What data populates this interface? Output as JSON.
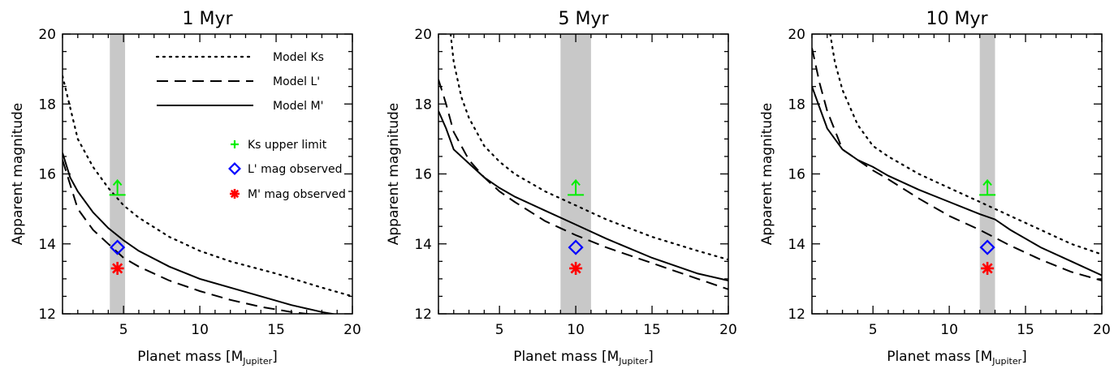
{
  "chart_data": [
    {
      "type": "line",
      "title": "1 Myr",
      "xlabel": "Planet mass [M",
      "xlabel_sub": "Jupiter",
      "xlabel_end": "]",
      "ylabel": "Apparent magnitude",
      "xlim": [
        1,
        20
      ],
      "ylim": [
        12,
        20
      ],
      "xticks": [
        5,
        10,
        15,
        20
      ],
      "yticks": [
        12,
        14,
        16,
        18,
        20
      ],
      "band": [
        4.1,
        5.1
      ],
      "series": [
        {
          "name": "Model Ks",
          "style": "dotted",
          "x": [
            1,
            2,
            3,
            4,
            5,
            6,
            8,
            10,
            12,
            15,
            18,
            20
          ],
          "y": [
            18.8,
            17.0,
            16.2,
            15.6,
            15.1,
            14.75,
            14.2,
            13.8,
            13.5,
            13.15,
            12.75,
            12.5
          ]
        },
        {
          "name": "Model L'",
          "style": "dashed",
          "x": [
            1,
            2,
            3,
            4,
            5,
            6,
            8,
            10,
            12,
            14,
            16,
            18
          ],
          "y": [
            16.4,
            15.0,
            14.4,
            14.0,
            13.6,
            13.35,
            12.95,
            12.65,
            12.4,
            12.2,
            12.05,
            11.95
          ]
        },
        {
          "name": "Model M'",
          "style": "solid",
          "x": [
            1,
            1.5,
            2,
            3,
            4,
            5,
            6,
            8,
            10,
            12,
            14,
            16,
            18,
            20
          ],
          "y": [
            16.6,
            15.9,
            15.5,
            14.9,
            14.45,
            14.1,
            13.8,
            13.35,
            13.0,
            12.75,
            12.5,
            12.25,
            12.05,
            11.9
          ]
        }
      ],
      "observations": [
        {
          "name": "Ks upper limit",
          "marker": "upper-limit",
          "x": 4.6,
          "y": 15.4,
          "color": "#00ee00"
        },
        {
          "name": "L' mag observed",
          "marker": "diamond",
          "x": 4.6,
          "y": 13.9,
          "color": "#0000ff"
        },
        {
          "name": "M' mag observed",
          "marker": "asterisk",
          "x": 4.6,
          "y": 13.3,
          "color": "#ff0000"
        }
      ],
      "legend": {
        "placement": "top-right",
        "lines": [
          {
            "label": "Model Ks",
            "style": "dotted"
          },
          {
            "label": "Model L'",
            "style": "dashed"
          },
          {
            "label": "Model M'",
            "style": "solid"
          }
        ],
        "symbols": [
          {
            "label": "Ks upper limit",
            "marker": "plus",
            "color": "#00ee00"
          },
          {
            "label": "L' mag observed",
            "marker": "diamond",
            "color": "#0000ff"
          },
          {
            "label": "M' mag observed",
            "marker": "asterisk",
            "color": "#ff0000"
          }
        ]
      }
    },
    {
      "type": "line",
      "title": "5 Myr",
      "xlabel": "Planet mass [M",
      "xlabel_sub": "Jupiter",
      "xlabel_end": "]",
      "ylabel": "Apparent magnitude",
      "xlim": [
        1,
        20
      ],
      "ylim": [
        12,
        20
      ],
      "xticks": [
        5,
        10,
        15,
        20
      ],
      "yticks": [
        12,
        14,
        16,
        18,
        20
      ],
      "band": [
        9,
        11
      ],
      "series": [
        {
          "name": "Model Ks",
          "style": "dotted",
          "x": [
            1.8,
            2,
            2.5,
            3,
            4,
            5,
            6,
            8,
            10,
            12,
            15,
            18,
            20
          ],
          "y": [
            20.0,
            19.2,
            18.2,
            17.6,
            16.8,
            16.35,
            16.0,
            15.5,
            15.1,
            14.7,
            14.2,
            13.8,
            13.55
          ]
        },
        {
          "name": "Model L'",
          "style": "dashed",
          "x": [
            1,
            1.5,
            2,
            3,
            4,
            5,
            6,
            8,
            10,
            12,
            15,
            18,
            20
          ],
          "y": [
            18.7,
            18.0,
            17.2,
            16.4,
            15.9,
            15.5,
            15.2,
            14.65,
            14.25,
            13.9,
            13.45,
            13.0,
            12.7
          ]
        },
        {
          "name": "Model M'",
          "style": "solid",
          "x": [
            1,
            1.5,
            2,
            3,
            4,
            5,
            6,
            8,
            10,
            12,
            15,
            18,
            20
          ],
          "y": [
            17.8,
            17.3,
            16.7,
            16.3,
            15.9,
            15.6,
            15.35,
            14.95,
            14.55,
            14.15,
            13.6,
            13.15,
            12.95
          ]
        }
      ],
      "observations": [
        {
          "name": "Ks upper limit",
          "marker": "upper-limit",
          "x": 10,
          "y": 15.4,
          "color": "#00ee00"
        },
        {
          "name": "L' mag observed",
          "marker": "diamond",
          "x": 10,
          "y": 13.9,
          "color": "#0000ff"
        },
        {
          "name": "M' mag observed",
          "marker": "asterisk",
          "x": 10,
          "y": 13.3,
          "color": "#ff0000"
        }
      ]
    },
    {
      "type": "line",
      "title": "10 Myr",
      "xlabel": "Planet mass [M",
      "xlabel_sub": "Jupiter",
      "xlabel_end": "]",
      "ylabel": "Apparent magnitude",
      "xlim": [
        1,
        20
      ],
      "ylim": [
        12,
        20
      ],
      "xticks": [
        5,
        10,
        15,
        20
      ],
      "yticks": [
        12,
        14,
        16,
        18,
        20
      ],
      "band": [
        12,
        13
      ],
      "series": [
        {
          "name": "Model Ks",
          "style": "dotted",
          "x": [
            2.2,
            2.5,
            3,
            4,
            5,
            6,
            8,
            10,
            12,
            14,
            16,
            18,
            20
          ],
          "y": [
            20.0,
            19.2,
            18.4,
            17.4,
            16.8,
            16.5,
            16.0,
            15.6,
            15.2,
            14.8,
            14.4,
            14.0,
            13.7
          ]
        },
        {
          "name": "Model L'",
          "style": "dashed",
          "x": [
            1,
            1.5,
            2,
            3,
            4,
            5,
            6,
            8,
            10,
            12,
            14,
            16,
            18,
            20
          ],
          "y": [
            19.6,
            18.6,
            17.8,
            16.7,
            16.4,
            16.1,
            15.85,
            15.3,
            14.8,
            14.4,
            13.95,
            13.55,
            13.2,
            12.95
          ]
        },
        {
          "name": "Model M'",
          "style": "solid",
          "x": [
            1,
            1.5,
            2,
            3,
            4,
            5,
            6,
            8,
            10,
            12,
            13,
            14,
            16,
            18,
            20
          ],
          "y": [
            18.5,
            17.9,
            17.3,
            16.7,
            16.4,
            16.2,
            15.95,
            15.55,
            15.2,
            14.85,
            14.7,
            14.4,
            13.9,
            13.5,
            13.1
          ]
        }
      ],
      "observations": [
        {
          "name": "Ks upper limit",
          "marker": "upper-limit",
          "x": 12.5,
          "y": 15.4,
          "color": "#00ee00"
        },
        {
          "name": "L' mag observed",
          "marker": "diamond",
          "x": 12.5,
          "y": 13.9,
          "color": "#0000ff"
        },
        {
          "name": "M' mag observed",
          "marker": "asterisk",
          "x": 12.5,
          "y": 13.3,
          "color": "#ff0000"
        }
      ]
    }
  ]
}
